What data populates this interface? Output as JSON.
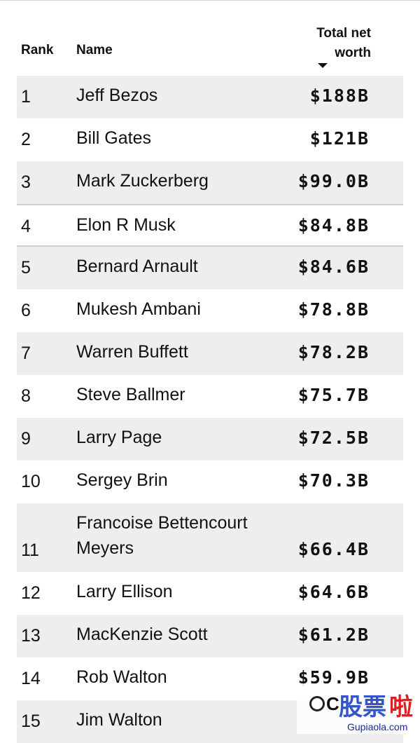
{
  "header": {
    "rank": "Rank",
    "name": "Name",
    "worth_line1": "Total net",
    "worth_line2": "worth"
  },
  "sort_indicator": "sort-descending-icon",
  "rows": [
    {
      "rank": "1",
      "name": "Jeff Bezos",
      "worth": "$188B"
    },
    {
      "rank": "2",
      "name": "Bill Gates",
      "worth": "$121B"
    },
    {
      "rank": "3",
      "name": "Mark Zuckerberg",
      "worth": "$99.0B"
    },
    {
      "rank": "4",
      "name": "Elon R Musk",
      "worth": "$84.8B"
    },
    {
      "rank": "5",
      "name": "Bernard Arnault",
      "worth": "$84.6B"
    },
    {
      "rank": "6",
      "name": "Mukesh Ambani",
      "worth": "$78.8B"
    },
    {
      "rank": "7",
      "name": "Warren Buffett",
      "worth": "$78.2B"
    },
    {
      "rank": "8",
      "name": "Steve Ballmer",
      "worth": "$75.7B"
    },
    {
      "rank": "9",
      "name": "Larry Page",
      "worth": "$72.5B"
    },
    {
      "rank": "10",
      "name": "Sergey Brin",
      "worth": "$70.3B"
    },
    {
      "rank": "11",
      "name": "Francoise Bettencourt Meyers",
      "worth": "$66.4B"
    },
    {
      "rank": "12",
      "name": "Larry Ellison",
      "worth": "$64.6B"
    },
    {
      "rank": "13",
      "name": "MacKenzie Scott",
      "worth": "$61.2B"
    },
    {
      "rank": "14",
      "name": "Rob Walton",
      "worth": "$59.9B"
    },
    {
      "rank": "15",
      "name": "Jim Walton",
      "worth": ""
    }
  ],
  "watermark": {
    "letter": "C",
    "cn_part1": "股票",
    "cn_part2": "啦",
    "url": "Gupiaola.com"
  },
  "colors": {
    "row_shade": "#eeeeee",
    "separator": "#cfcfcf",
    "text": "#111111",
    "watermark_blue": "#3455c8",
    "watermark_red": "#e02020"
  }
}
